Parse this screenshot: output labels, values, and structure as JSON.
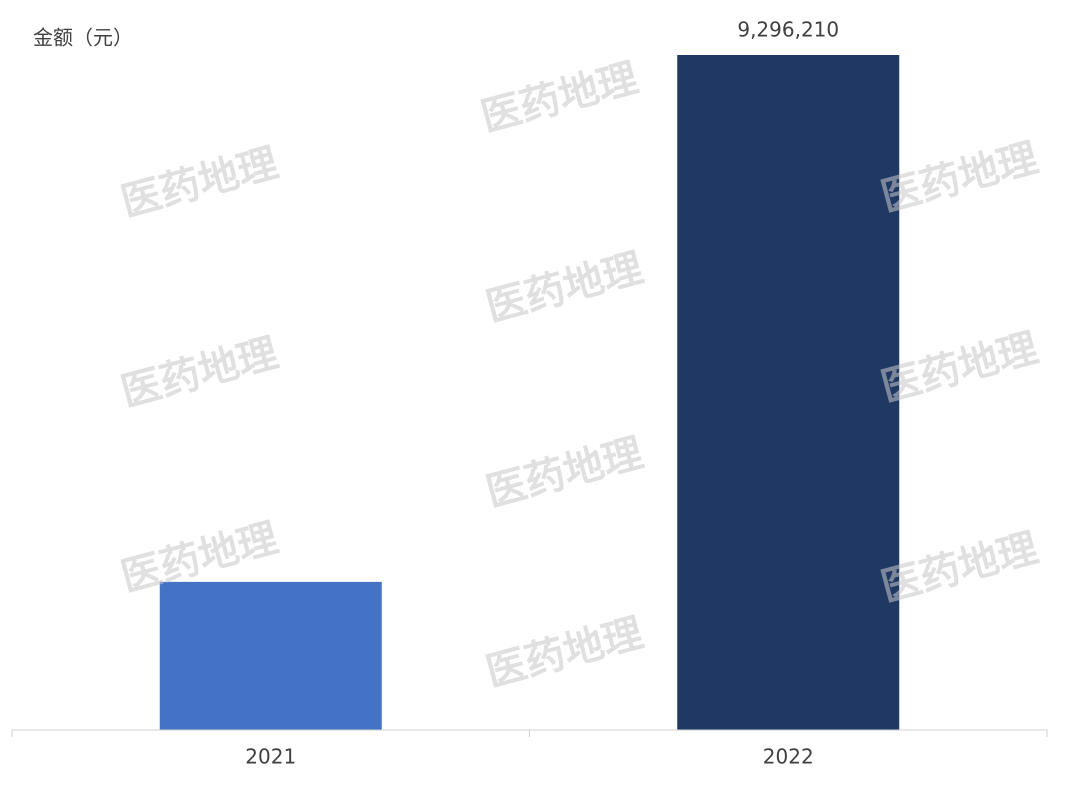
{
  "chart_data": {
    "type": "bar",
    "y_label": "金额（元）",
    "categories": [
      "2021",
      "2022"
    ],
    "values": [
      2040000,
      9296210
    ],
    "value_labels": [
      null,
      "9,296,210"
    ],
    "colors": [
      "#4472c4",
      "#203864"
    ],
    "watermark": "医药地理"
  }
}
